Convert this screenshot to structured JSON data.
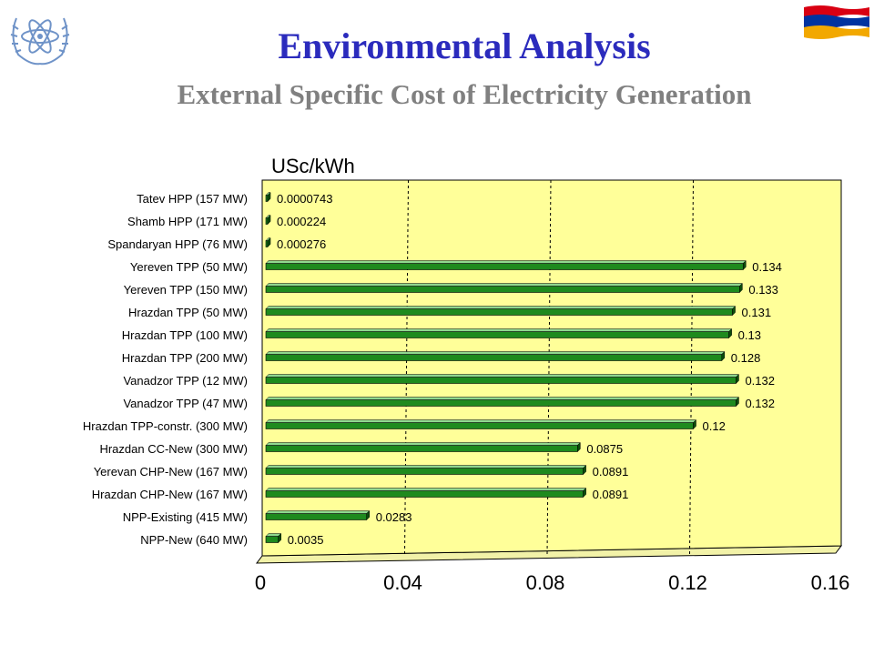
{
  "header": {
    "title": "Environmental Analysis",
    "subtitle": "External Specific Cost of Electricity Generation",
    "logo_icon": "iaea-emblem-icon",
    "flag_icon": "armenia-flag-icon"
  },
  "colors": {
    "title": "#2b2bbd",
    "subtitle": "#808080",
    "plot_background": "#ffff99",
    "bar": "#1e8a1e",
    "bar_top": "#8fd88f",
    "bar_side": "#0b4d0b",
    "flag_red": "#d90012",
    "flag_blue": "#0033a0",
    "flag_orange": "#f2a800",
    "logo_blue": "#6f93c8"
  },
  "chart_data": {
    "type": "bar",
    "orientation": "horizontal",
    "unit_label": "USc/kWh",
    "categories": [
      "Tatev HPP (157 MW)",
      "Shamb HPP (171 MW)",
      "Spandaryan HPP (76 MW)",
      "Yereven TPP (50 MW)",
      "Yereven TPP (150 MW)",
      "Hrazdan TPP (50 MW)",
      "Hrazdan TPP (100 MW)",
      "Hrazdan TPP (200 MW)",
      "Vanadzor TPP (12 MW)",
      "Vanadzor TPP (47 MW)",
      "Hrazdan TPP-constr. (300 MW)",
      "Hrazdan CC-New (300 MW)",
      "Yerevan CHP-New (167 MW)",
      "Hrazdan CHP-New (167 MW)",
      "NPP-Existing (415 MW)",
      "NPP-New (640 MW)"
    ],
    "values": [
      7.43e-05,
      0.000224,
      0.000276,
      0.134,
      0.133,
      0.131,
      0.13,
      0.128,
      0.132,
      0.132,
      0.12,
      0.0875,
      0.0891,
      0.0891,
      0.0283,
      0.0035
    ],
    "value_labels": [
      "0.0000743",
      "0.000224",
      "0.000276",
      "0.134",
      "0.133",
      "0.131",
      "0.13",
      "0.128",
      "0.132",
      "0.132",
      "0.12",
      "0.0875",
      "0.0891",
      "0.0891",
      "0.0283",
      "0.0035"
    ],
    "xlim": [
      0,
      0.16
    ],
    "xticks": [
      "0",
      "0.04",
      "0.08",
      "0.12",
      "0.16"
    ],
    "gridlines": "vertical-dashed"
  }
}
